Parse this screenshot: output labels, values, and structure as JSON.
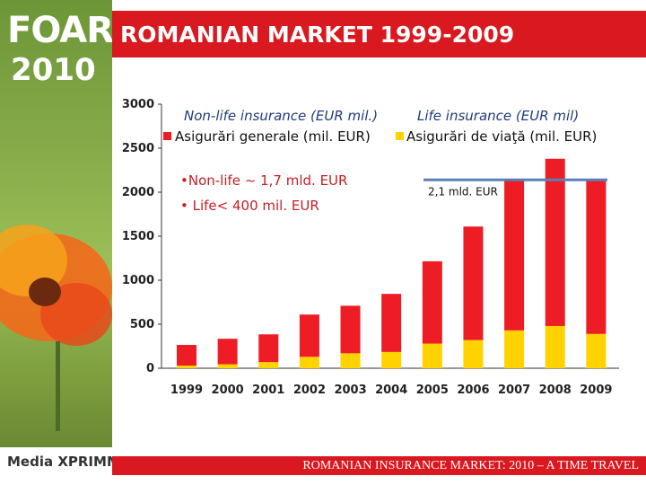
{
  "branding": {
    "logo_word": "FOAR",
    "logo_year": "2010",
    "media_logo": "Media XPRIMM"
  },
  "slide": {
    "title": "ROMANIAN MARKET 1999-2009",
    "footer": "ROMANIAN INSURANCE MARKET: 2010 – A TIME TRAVEL"
  },
  "colors": {
    "title_bar": "#d9181f",
    "non_life": "#ee1c25",
    "life": "#ffd200",
    "reference_line": "#5a7fb5"
  },
  "chart_data": {
    "type": "bar",
    "stacked": true,
    "categories": [
      "1999",
      "2000",
      "2001",
      "2002",
      "2003",
      "2004",
      "2005",
      "2006",
      "2007",
      "2008",
      "2009"
    ],
    "ylim": [
      0,
      3000
    ],
    "yticks": [
      "0",
      "500",
      "1000",
      "1500",
      "2000",
      "2500",
      "3000"
    ],
    "series_captions": [
      "Non-life insurance (EUR mil.)",
      "Life insurance (EUR mil)"
    ],
    "series": [
      {
        "name": "Asigurări de viaţă (mil. EUR)",
        "values": [
          30,
          45,
          70,
          130,
          170,
          185,
          280,
          320,
          430,
          480,
          390
        ]
      },
      {
        "name": "Asigurări generale (mil. EUR)",
        "values": [
          235,
          290,
          315,
          480,
          540,
          660,
          935,
          1290,
          1720,
          1900,
          1750
        ]
      }
    ],
    "legend_position": "top",
    "annotations": [
      "•Non-life ~ 1,7 mld. EUR",
      "• Life< 400 mil. EUR"
    ],
    "reference_line": {
      "value": 2140,
      "label": "2,1 mld. EUR"
    },
    "grid": false
  }
}
